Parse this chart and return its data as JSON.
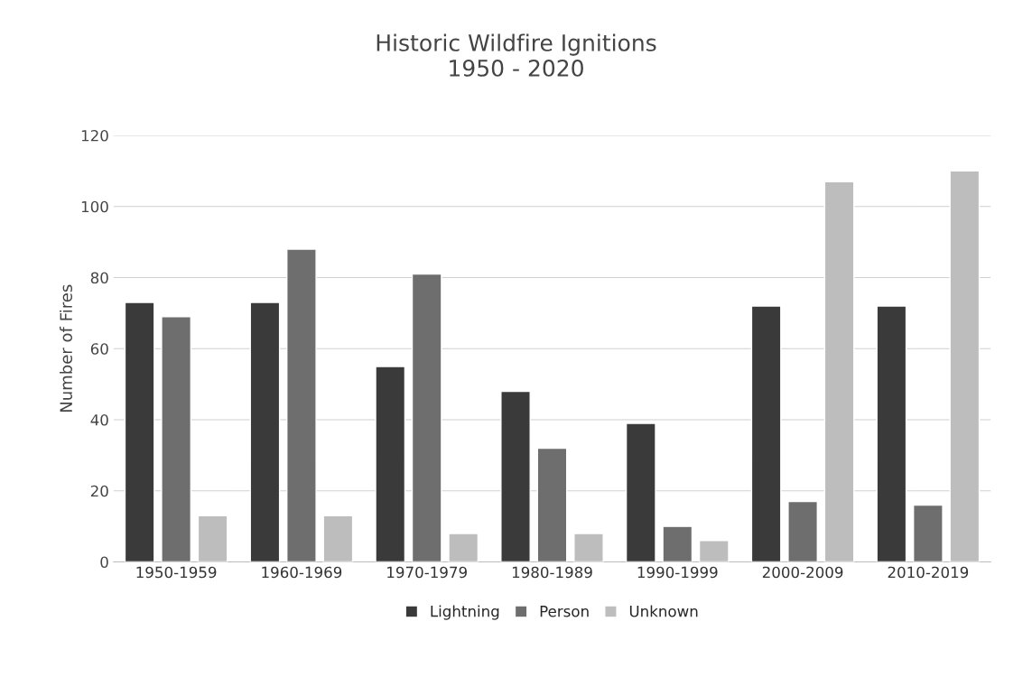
{
  "chart_data": {
    "type": "bar",
    "title": "Historic Wildfire Ignitions\n1950 - 2020",
    "ylabel": "Number of Fires",
    "categories": [
      "1950-1959",
      "1960-1969",
      "1970-1979",
      "1980-1989",
      "1990-1999",
      "2000-2009",
      "2010-2019"
    ],
    "series": [
      {
        "name": "Lightning",
        "color": "#3a3a3a",
        "values": [
          73,
          73,
          55,
          48,
          39,
          72,
          72
        ]
      },
      {
        "name": "Person",
        "color": "#6e6e6e",
        "values": [
          69,
          88,
          81,
          32,
          10,
          17,
          16
        ]
      },
      {
        "name": "Unknown",
        "color": "#bdbdbd",
        "values": [
          13,
          13,
          8,
          8,
          6,
          107,
          110
        ]
      }
    ],
    "ylim": [
      0,
      120
    ],
    "yticks": [
      0,
      20,
      40,
      60,
      80,
      100,
      120
    ],
    "grid": "y",
    "legend": "bottom"
  }
}
